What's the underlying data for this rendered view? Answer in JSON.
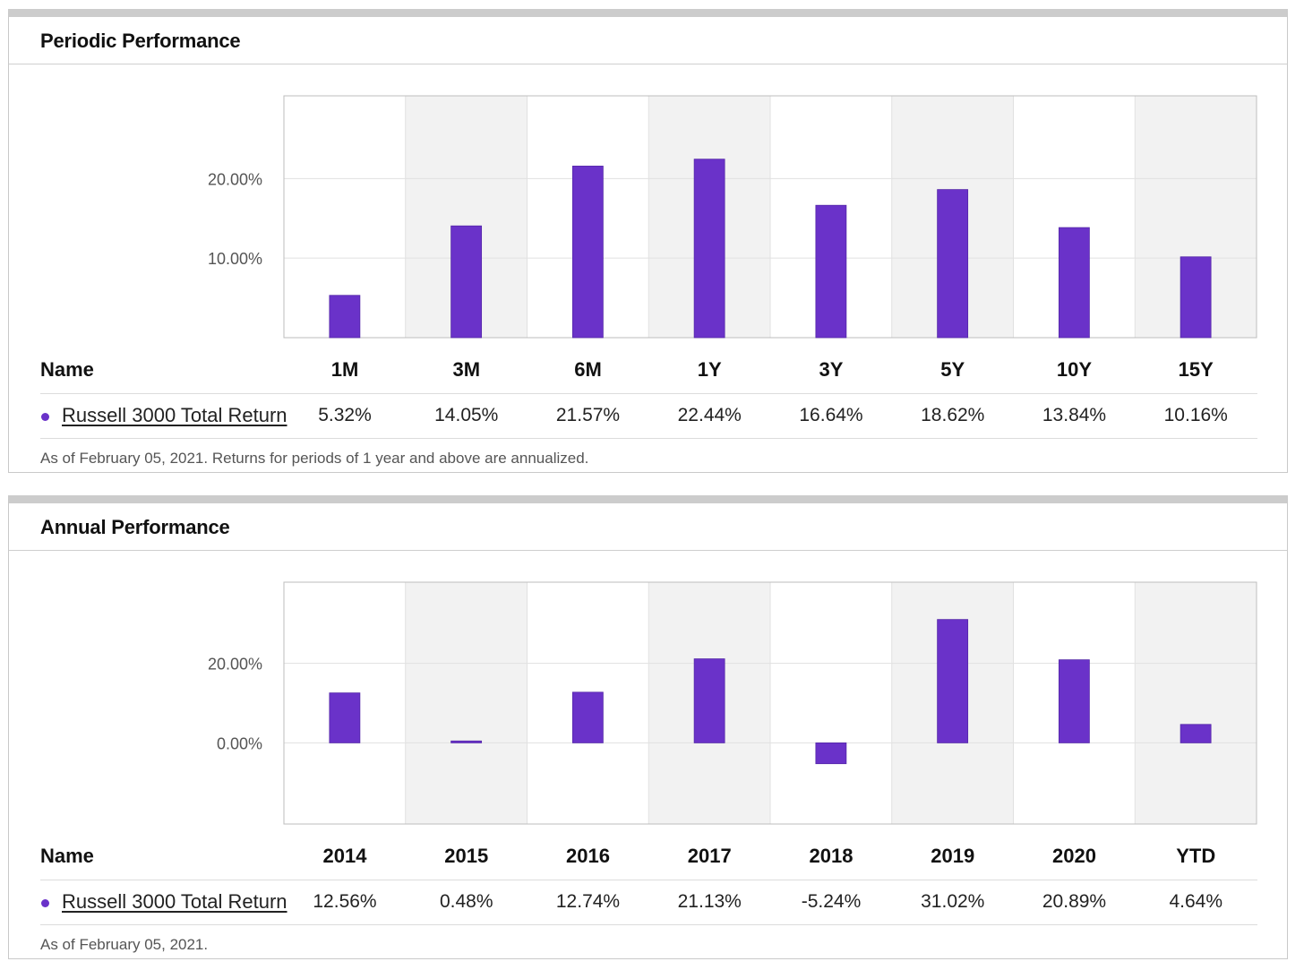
{
  "colors": {
    "bar": "#6a32c9",
    "shade": "#f2f2f2",
    "grid": "#e1e1e1",
    "axis": "#bdbdbd"
  },
  "panels": [
    {
      "title": "Periodic Performance",
      "name_header": "Name",
      "series_name": "Russell 3000 Total Return",
      "cells": [
        "5.32%",
        "14.05%",
        "21.57%",
        "22.44%",
        "16.64%",
        "18.62%",
        "13.84%",
        "10.16%"
      ],
      "footnote": "As of February 05, 2021. Returns for periods of 1 year and above are annualized.",
      "chart_data": {
        "type": "bar",
        "categories": [
          "1M",
          "3M",
          "6M",
          "1Y",
          "3Y",
          "5Y",
          "10Y",
          "15Y"
        ],
        "series": [
          {
            "name": "Russell 3000 Total Return",
            "values": [
              5.32,
              14.05,
              21.57,
              22.44,
              16.64,
              18.62,
              13.84,
              10.16
            ]
          }
        ],
        "yticks": [
          10,
          20
        ],
        "ytick_labels": [
          "10.00%",
          "20.00%"
        ],
        "ylim": [
          0,
          30.4
        ],
        "grid": true,
        "legend": "none"
      }
    },
    {
      "title": "Annual Performance",
      "name_header": "Name",
      "series_name": "Russell 3000 Total Return",
      "cells": [
        "12.56%",
        "0.48%",
        "12.74%",
        "21.13%",
        "-5.24%",
        "31.02%",
        "20.89%",
        "4.64%"
      ],
      "footnote": "As of February 05, 2021.",
      "chart_data": {
        "type": "bar",
        "categories": [
          "2014",
          "2015",
          "2016",
          "2017",
          "2018",
          "2019",
          "2020",
          "YTD"
        ],
        "series": [
          {
            "name": "Russell 3000 Total Return",
            "values": [
              12.56,
              0.48,
              12.74,
              21.13,
              -5.24,
              31.02,
              20.89,
              4.64
            ]
          }
        ],
        "yticks": [
          0,
          20
        ],
        "ytick_labels": [
          "0.00%",
          "20.00%"
        ],
        "ylim": [
          -20.4,
          40.4
        ],
        "grid": true,
        "legend": "none"
      }
    }
  ]
}
